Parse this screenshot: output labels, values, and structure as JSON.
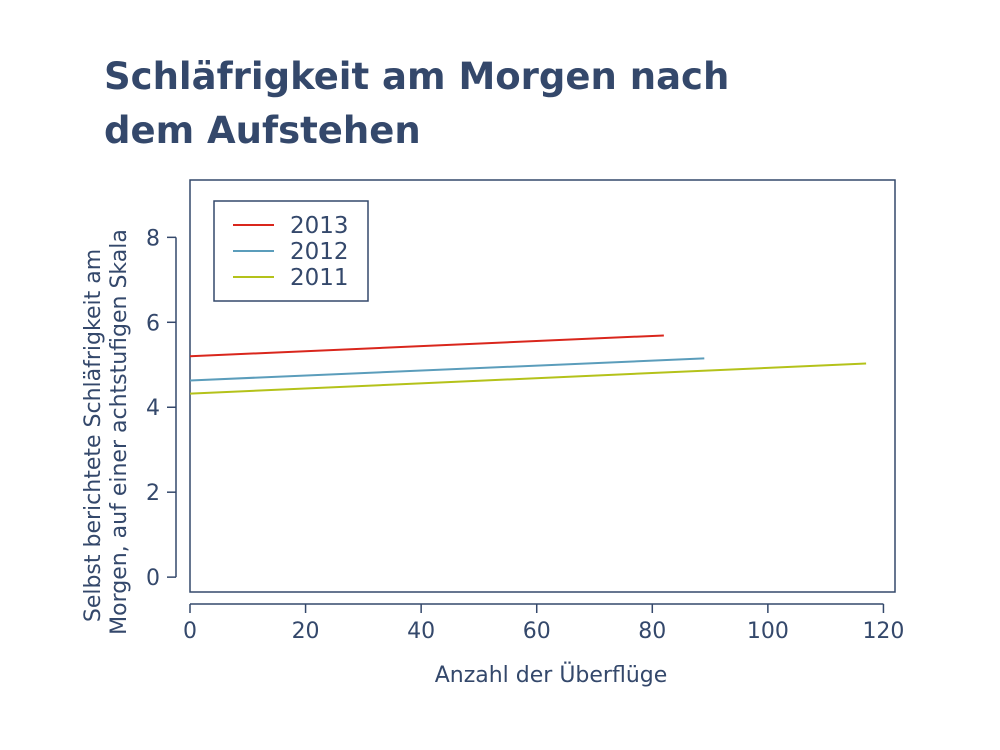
{
  "chart_data": {
    "type": "line",
    "title": "Schläfrigkeit am Morgen nach dem Aufstehen",
    "xlabel": "Anzahl der Überflüge",
    "ylabel_lines": [
      "Selbst berichtete Schläfrigkeit am",
      "Morgen, auf einer achtstufigen Skala"
    ],
    "xlim": [
      0,
      122
    ],
    "ylim": [
      -0.35,
      9.35
    ],
    "xticks": [
      "0",
      "20",
      "40",
      "60",
      "80",
      "100",
      "120"
    ],
    "yticks": [
      "0",
      "2",
      "4",
      "6",
      "8"
    ],
    "legend_position": "top-left",
    "grid": false,
    "series": [
      {
        "name": "2013",
        "color": "#d9261c",
        "x": [
          0,
          82
        ],
        "y": [
          5.2,
          5.69
        ]
      },
      {
        "name": "2012",
        "color": "#5b9dbb",
        "x": [
          0,
          89
        ],
        "y": [
          4.63,
          5.15
        ]
      },
      {
        "name": "2011",
        "color": "#b4c21a",
        "x": [
          0,
          117
        ],
        "y": [
          4.32,
          5.03
        ]
      }
    ]
  }
}
